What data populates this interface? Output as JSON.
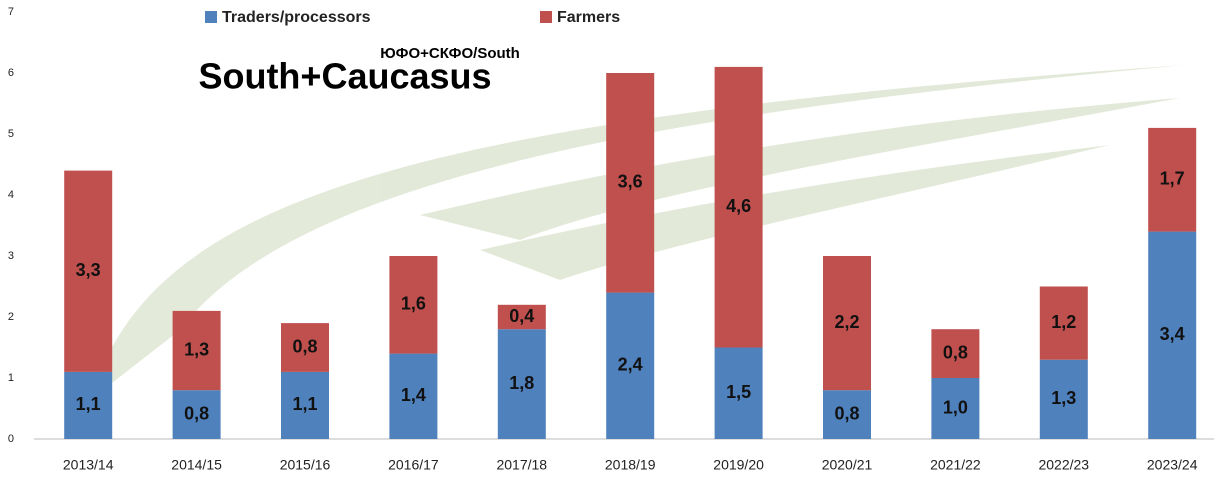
{
  "chart_data": {
    "type": "stacked_bar",
    "title": "South+Caucasus",
    "subtitle": "ЮФО+СКФО/South",
    "categories": [
      "2013/14",
      "2014/15",
      "2015/16",
      "2016/17",
      "2017/18",
      "2018/19",
      "2019/20",
      "2020/21",
      "2021/22",
      "2022/23",
      "2023/24"
    ],
    "series": [
      {
        "name": "Traders/processors",
        "color": "#4f81bd",
        "values": [
          1.1,
          0.8,
          1.1,
          1.4,
          1.8,
          2.4,
          1.5,
          0.8,
          1.0,
          1.3,
          3.4
        ],
        "value_labels": [
          "1,1",
          "0,8",
          "1,1",
          "1,4",
          "1,8",
          "2,4",
          "1,5",
          "0,8",
          "1,0",
          "1,3",
          "3,4"
        ]
      },
      {
        "name": "Farmers",
        "color": "#c0504d",
        "values": [
          3.3,
          1.3,
          0.8,
          1.6,
          0.4,
          3.6,
          4.6,
          2.2,
          0.8,
          1.2,
          1.7
        ],
        "value_labels": [
          "3,3",
          "1,3",
          "0,8",
          "1,6",
          "0,4",
          "3,6",
          "4,6",
          "2,2",
          "0,8",
          "1,2",
          "1,7"
        ]
      }
    ],
    "ylim": [
      0,
      7
    ],
    "yticks": [
      0,
      1,
      2,
      3,
      4,
      5,
      6,
      7
    ],
    "legend": "top"
  }
}
